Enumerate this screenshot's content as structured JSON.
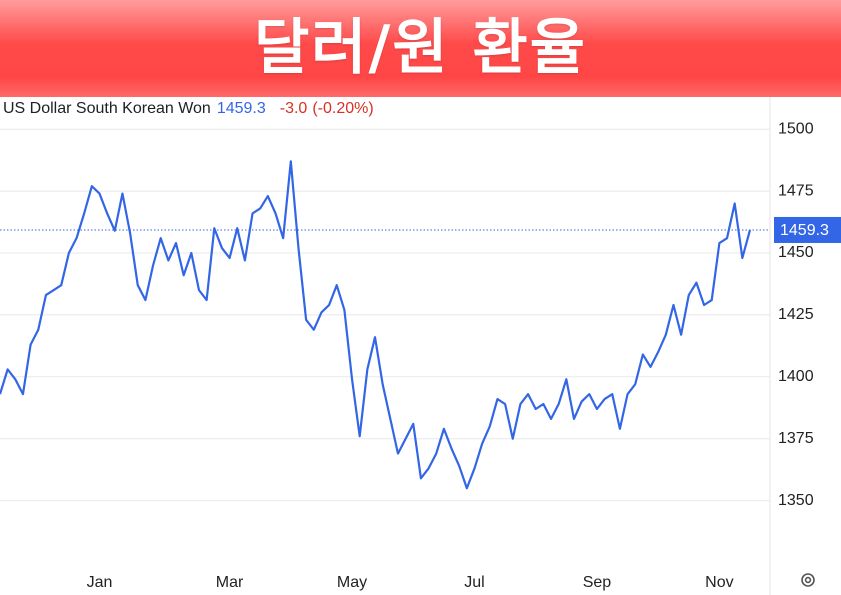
{
  "chart_data": {
    "type": "line",
    "title": "달러/원 환율",
    "series": [
      {
        "name": "US Dollar South Korean Won",
        "color": "#3366e6",
        "values": [
          1393,
          1403,
          1399,
          1393,
          1413,
          1419,
          1433,
          1435,
          1437,
          1450,
          1456,
          1466,
          1477,
          1474,
          1466,
          1459,
          1474,
          1458,
          1437,
          1431,
          1445,
          1456,
          1447,
          1454,
          1441,
          1450,
          1435,
          1431,
          1460,
          1452,
          1448,
          1460,
          1447,
          1466,
          1468,
          1473,
          1466,
          1456,
          1487,
          1452,
          1423,
          1419,
          1426,
          1429,
          1437,
          1427,
          1399,
          1376,
          1403,
          1416,
          1397,
          1383,
          1369,
          1375,
          1381,
          1359,
          1363,
          1369,
          1379,
          1371,
          1364,
          1355,
          1363,
          1373,
          1380,
          1391,
          1389,
          1375,
          1389,
          1393,
          1387,
          1389,
          1383,
          1389,
          1399,
          1383,
          1390,
          1393,
          1387,
          1391,
          1393,
          1379,
          1393,
          1397,
          1409,
          1404,
          1410,
          1417,
          1429,
          1417,
          1433,
          1438,
          1429,
          1431,
          1454,
          1456,
          1470,
          1448,
          1459.3
        ]
      }
    ],
    "categories": [
      null,
      null,
      null,
      null,
      null,
      null,
      null,
      null,
      null,
      null,
      null,
      null,
      null,
      "Jan",
      null,
      null,
      null,
      null,
      null,
      null,
      null,
      null,
      null,
      null,
      null,
      null,
      null,
      null,
      null,
      null,
      "Mar",
      null,
      null,
      null,
      null,
      null,
      null,
      null,
      null,
      null,
      null,
      null,
      null,
      null,
      null,
      null,
      "May",
      null,
      null,
      null,
      null,
      null,
      null,
      null,
      null,
      null,
      null,
      null,
      null,
      null,
      null,
      null,
      "Jul",
      null,
      null,
      null,
      null,
      null,
      null,
      null,
      null,
      null,
      null,
      null,
      null,
      null,
      null,
      null,
      "Sep",
      null,
      null,
      null,
      null,
      null,
      null,
      null,
      null,
      null,
      null,
      null,
      null,
      null,
      null,
      null,
      "Nov",
      null,
      null,
      null,
      null
    ],
    "last_value": 1459.3,
    "change": "-3.0",
    "change_percent": "(-0.20%)",
    "ylim": [
      1324,
      1513
    ],
    "yticks": [
      1350,
      1375,
      1400,
      1425,
      1450,
      1475,
      1500
    ],
    "grid": true
  }
}
